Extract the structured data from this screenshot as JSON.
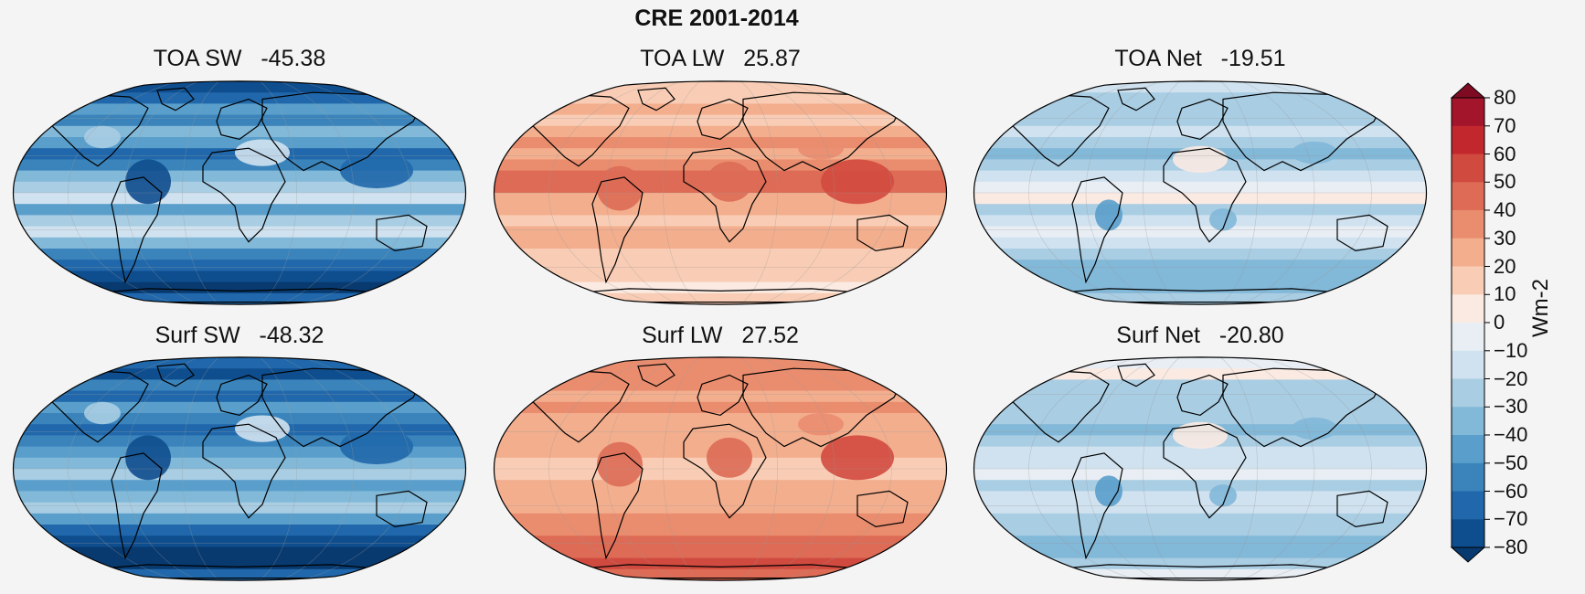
{
  "chart_data": {
    "type": "heatmap",
    "title": "CRE 2001-2014",
    "colorbar": {
      "label": "Wm-2",
      "ticks": [
        80,
        70,
        60,
        50,
        40,
        30,
        20,
        10,
        0,
        -10,
        -20,
        -30,
        -40,
        -50,
        -60,
        -70,
        -80
      ],
      "tick_labels": [
        "80",
        "70",
        "60",
        "50",
        "40",
        "30",
        "20",
        "10",
        "0",
        "−10",
        "−20",
        "−30",
        "−40",
        "−50",
        "−60",
        "−70",
        "−80"
      ],
      "range": [
        -80,
        80
      ],
      "extend": "both",
      "colors": [
        "#7f0b23",
        "#a3152b",
        "#c1272d",
        "#d14a3f",
        "#dd6b55",
        "#ea8d6f",
        "#f3ae8e",
        "#f9cdb5",
        "#faeae2",
        "#e8eef4",
        "#d0e2ef",
        "#a9cde3",
        "#82b8d8",
        "#5a9fcb",
        "#3a84bb",
        "#2068ab",
        "#0f4e8e",
        "#083a70"
      ]
    },
    "panels": [
      {
        "name": "TOA SW",
        "value": -45.38,
        "title": "TOA SW   -45.38",
        "kind": "sw"
      },
      {
        "name": "TOA LW",
        "value": 25.87,
        "title": "TOA LW   25.87",
        "kind": "lw"
      },
      {
        "name": "TOA Net",
        "value": -19.51,
        "title": "TOA Net   -19.51",
        "kind": "net"
      },
      {
        "name": "Surf SW",
        "value": -48.32,
        "title": "Surf SW   -48.32",
        "kind": "sw"
      },
      {
        "name": "Surf LW",
        "value": 27.52,
        "title": "Surf LW   27.52",
        "kind": "lw"
      },
      {
        "name": "Surf Net",
        "value": -20.8,
        "title": "Surf Net   -20.80",
        "kind": "net"
      }
    ],
    "projection": "Robinson",
    "coastlines": true,
    "grid": true
  }
}
